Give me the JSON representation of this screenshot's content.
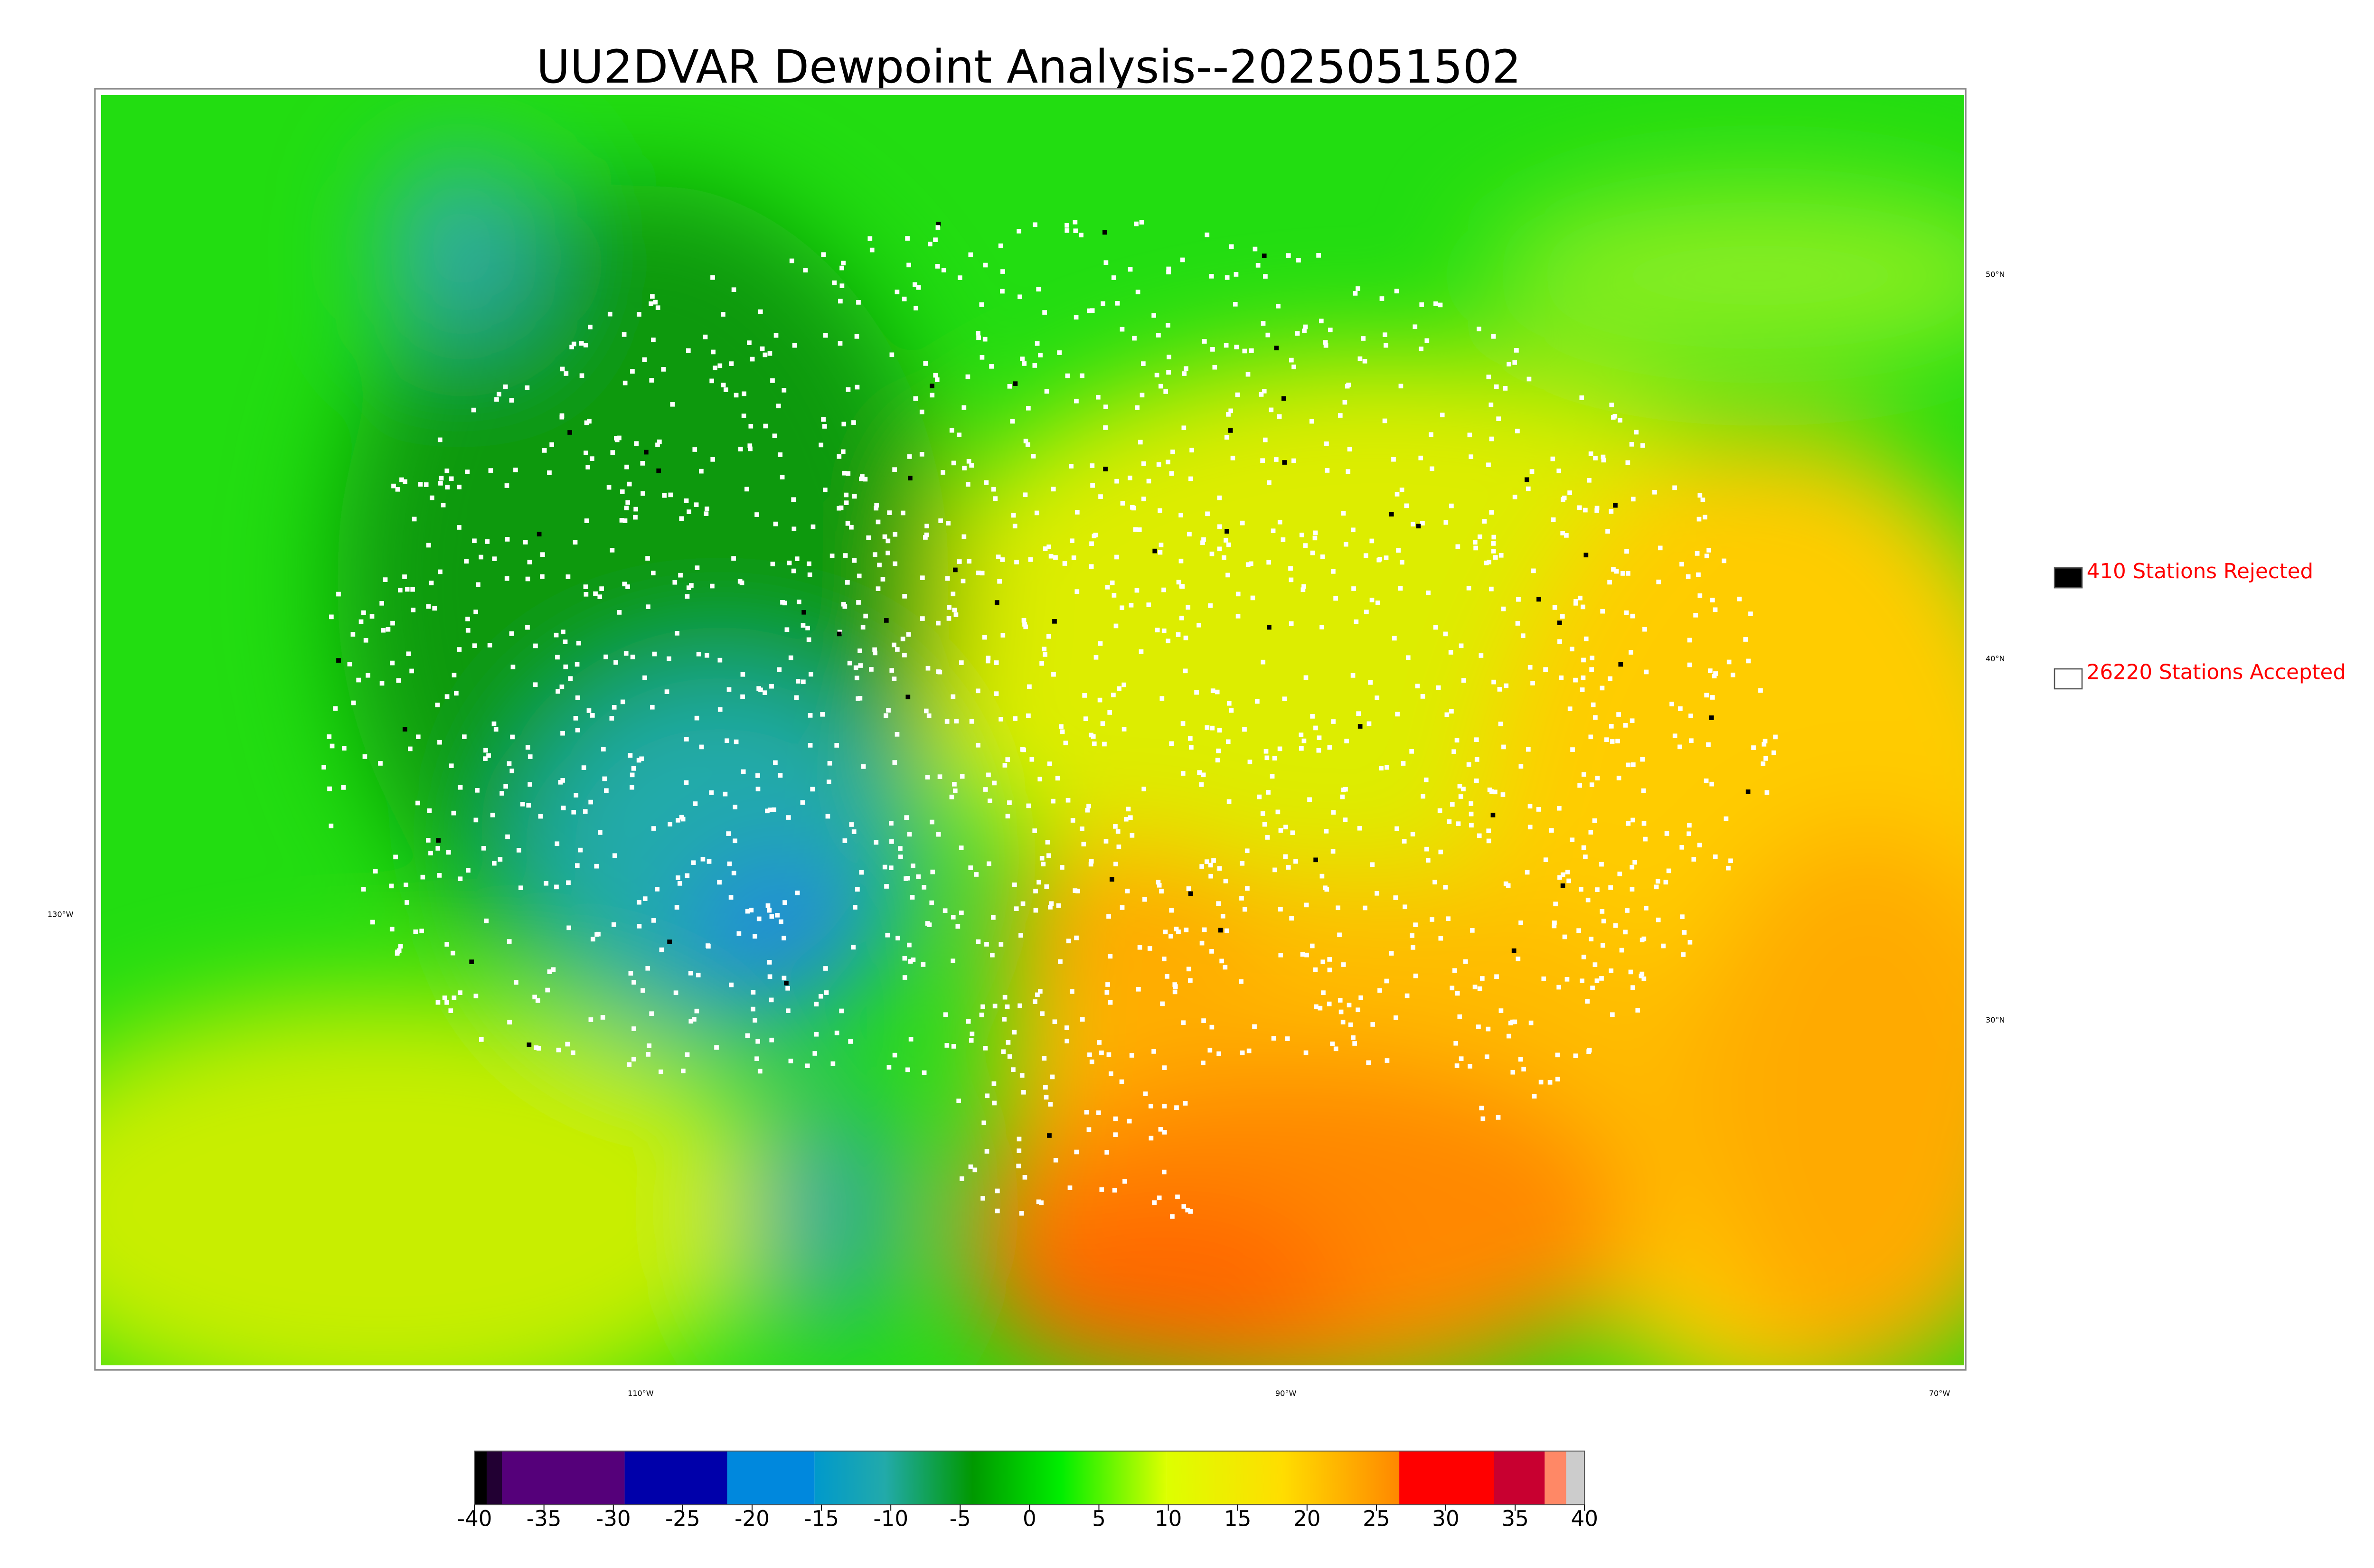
{
  "title": "UU2DVAR Dewpoint Analysis--2025051502",
  "legend": [
    {
      "label": "410 Stations Rejected",
      "color": "#000000"
    },
    {
      "label": "26220 Stations Accepted",
      "color": "#ffffff"
    }
  ],
  "graticule_labels": {
    "latitudes": [
      "50°N",
      "40°N",
      "30°N"
    ],
    "longitudes": [
      "130°W",
      "110°W",
      "90°W",
      "70°W"
    ]
  },
  "colorbar": {
    "ticks": [
      -40,
      -35,
      -30,
      -25,
      -20,
      -15,
      -10,
      -5,
      0,
      5,
      10,
      15,
      20,
      25,
      30,
      35,
      40
    ],
    "range": [
      -40,
      40
    ]
  }
}
